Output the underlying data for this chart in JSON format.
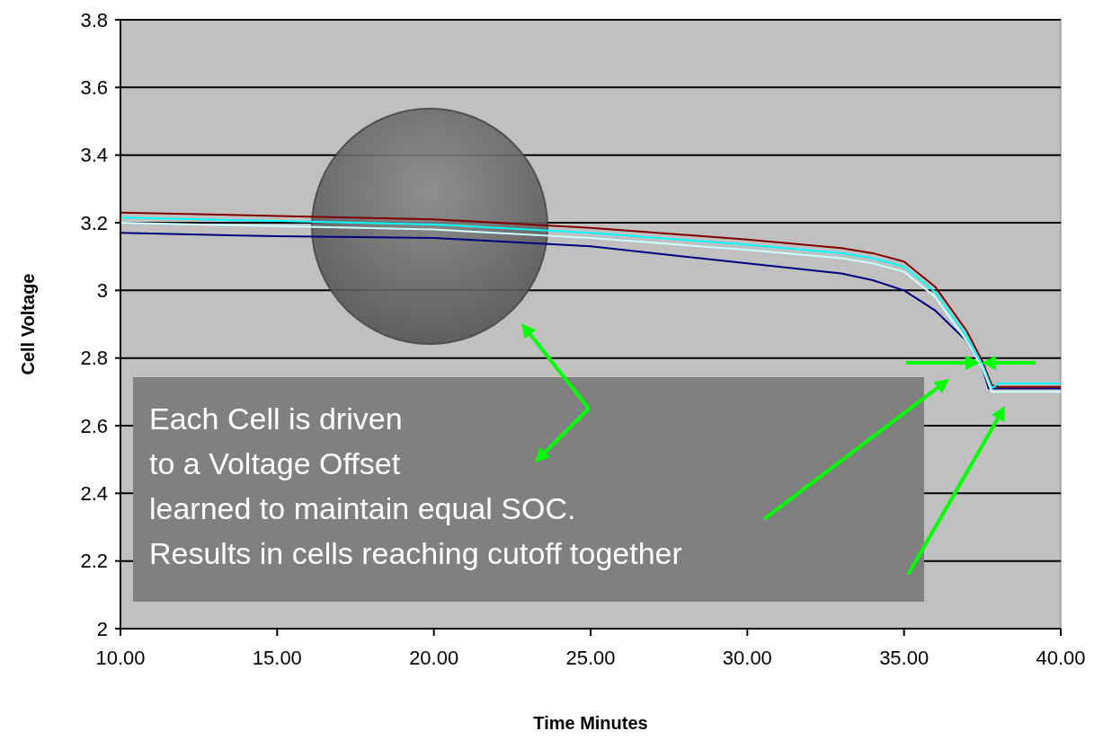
{
  "chart_data": {
    "type": "line",
    "xlabel": "Time Minutes",
    "ylabel": "Cell Voltage",
    "xlim": [
      10,
      40
    ],
    "ylim": [
      2,
      3.8
    ],
    "xticks": [
      {
        "value": 10,
        "label": "10.00"
      },
      {
        "value": 15,
        "label": "15.00"
      },
      {
        "value": 20,
        "label": "20.00"
      },
      {
        "value": 25,
        "label": "25.00"
      },
      {
        "value": 30,
        "label": "30.00"
      },
      {
        "value": 35,
        "label": "35.00"
      },
      {
        "value": 40,
        "label": "40.00"
      }
    ],
    "yticks": [
      2,
      2.2,
      2.4,
      2.6,
      2.8,
      3,
      3.2,
      3.4,
      3.6,
      3.8
    ],
    "grid": "y",
    "marker": "none",
    "line_style": "solid",
    "x": [
      10,
      15,
      20,
      25,
      30,
      33,
      34,
      35,
      36,
      37,
      37.5,
      37.8,
      38,
      40
    ],
    "series": [
      {
        "color": "#000080",
        "x": [
          10,
          15,
          20,
          25,
          30,
          33,
          34,
          35,
          36,
          37,
          37.5,
          37.7,
          38,
          40
        ],
        "values": [
          3.17,
          3.16,
          3.155,
          3.13,
          3.08,
          3.05,
          3.03,
          3.0,
          2.94,
          2.85,
          2.77,
          2.71,
          2.71,
          2.71
        ]
      },
      {
        "color": "#800000",
        "values": [
          3.23,
          3.22,
          3.21,
          3.185,
          3.15,
          3.125,
          3.11,
          3.085,
          3.01,
          2.88,
          2.79,
          2.72,
          2.715,
          2.715
        ]
      },
      {
        "color": "#00ffff",
        "values": [
          3.215,
          3.205,
          3.195,
          3.17,
          3.135,
          3.11,
          3.095,
          3.07,
          2.995,
          2.865,
          2.78,
          2.71,
          2.725,
          2.725
        ]
      },
      {
        "color": "#ccffff",
        "values": [
          3.2,
          3.19,
          3.18,
          3.155,
          3.12,
          3.095,
          3.08,
          3.055,
          2.98,
          2.85,
          2.77,
          2.7,
          2.7,
          2.7
        ]
      }
    ],
    "annotations": [
      "Each Cell is driven",
      "to a Voltage Offset",
      "learned to maintain equal SOC.",
      "Results in cells reaching cutoff together"
    ]
  }
}
